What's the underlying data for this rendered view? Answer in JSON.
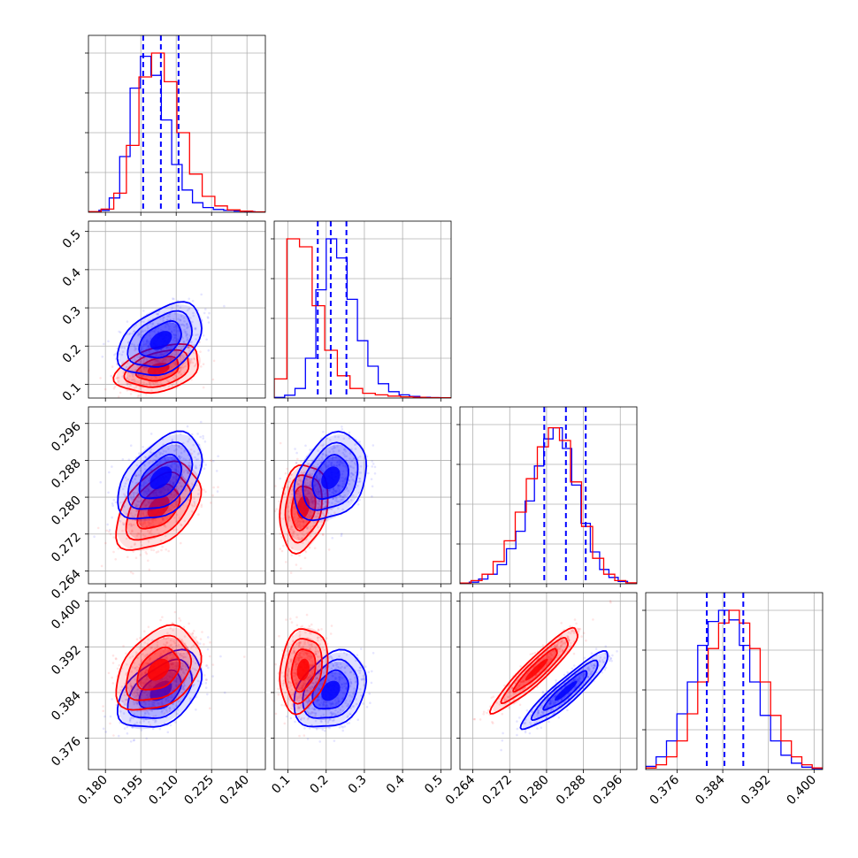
{
  "chart_data": {
    "type": "corner",
    "parameters": [
      {
        "ticks": [
          "0.180",
          "0.195",
          "0.210",
          "0.225",
          "0.240"
        ],
        "range": [
          0.1728,
          0.2478
        ]
      },
      {
        "ticks": [
          "0.1",
          "0.2",
          "0.3",
          "0.4",
          "0.5"
        ],
        "range": [
          0.064,
          0.527
        ]
      },
      {
        "ticks": [
          "0.264",
          "0.272",
          "0.280",
          "0.288",
          "0.296"
        ],
        "range": [
          0.2612,
          0.2996
        ]
      },
      {
        "ticks": [
          "0.376",
          "0.384",
          "0.392",
          "0.400"
        ],
        "range": [
          0.3705,
          0.4015
        ]
      }
    ],
    "grid": true,
    "series": [
      {
        "color": "#0000ff",
        "quantiles": [
          [
            0.196,
            0.2035,
            0.211
          ],
          [
            0.178,
            0.212,
            0.253
          ],
          [
            0.2795,
            0.2842,
            0.2885
          ],
          [
            0.3812,
            0.3843,
            0.3876
          ]
        ],
        "hist": [
          [
            0.003,
            0.012,
            0.09,
            0.35,
            0.78,
            0.98,
            0.86,
            0.58,
            0.3,
            0.14,
            0.06,
            0.03,
            0.018,
            0.012,
            0.008,
            0.004,
            0.002
          ],
          [
            0.004,
            0.018,
            0.06,
            0.25,
            0.68,
            1.0,
            0.88,
            0.62,
            0.36,
            0.2,
            0.09,
            0.04,
            0.02,
            0.01,
            0.005,
            0.003,
            0.002
          ],
          [
            0.004,
            0.01,
            0.03,
            0.06,
            0.12,
            0.22,
            0.33,
            0.52,
            0.74,
            0.91,
            0.98,
            0.85,
            0.62,
            0.38,
            0.2,
            0.09,
            0.04,
            0.015,
            0.005
          ],
          [
            0.02,
            0.08,
            0.18,
            0.35,
            0.55,
            0.78,
            0.93,
            1.0,
            0.94,
            0.78,
            0.55,
            0.34,
            0.18,
            0.09,
            0.04,
            0.015,
            0.005
          ]
        ],
        "pairs": {
          "1-0": {
            "mean": [
              0.2035,
              0.215
            ],
            "sd": [
              0.0085,
              0.045
            ],
            "rho": 0.4
          },
          "2-0": {
            "mean": [
              0.2035,
              0.2842
            ],
            "sd": [
              0.0085,
              0.0045
            ],
            "rho": 0.45
          },
          "2-1": {
            "mean": [
              0.212,
              0.2842
            ],
            "sd": [
              0.045,
              0.0045
            ],
            "rho": 0.3
          },
          "3-0": {
            "mean": [
              0.2035,
              0.3843
            ],
            "sd": [
              0.0085,
              0.0032
            ],
            "rho": 0.45
          },
          "3-1": {
            "mean": [
              0.212,
              0.3843
            ],
            "sd": [
              0.045,
              0.0032
            ],
            "rho": 0.3
          },
          "3-2": {
            "mean": [
              0.2842,
              0.3843
            ],
            "sd": [
              0.0045,
              0.0032
            ],
            "rho": 0.92
          }
        }
      },
      {
        "color": "#ff0000",
        "hist": [
          [
            0.004,
            0.02,
            0.12,
            0.42,
            0.85,
            1.0,
            0.82,
            0.5,
            0.24,
            0.1,
            0.04,
            0.015,
            0.007,
            0.003
          ],
          [
            0.12,
            1.0,
            0.95,
            0.58,
            0.3,
            0.14,
            0.06,
            0.03,
            0.02,
            0.012,
            0.008,
            0.005,
            0.003,
            0.002
          ],
          [
            0.005,
            0.02,
            0.06,
            0.14,
            0.27,
            0.45,
            0.66,
            0.86,
            0.98,
            0.9,
            0.64,
            0.36,
            0.16,
            0.06,
            0.02,
            0.006
          ],
          [
            0.01,
            0.03,
            0.08,
            0.18,
            0.35,
            0.55,
            0.76,
            0.92,
            1.0,
            0.92,
            0.76,
            0.55,
            0.34,
            0.18,
            0.08,
            0.03,
            0.01
          ]
        ],
        "pairs": {
          "1-0": {
            "mean": [
              0.2025,
              0.14
            ],
            "sd": [
              0.0085,
              0.03
            ],
            "rho": 0.35
          },
          "2-0": {
            "mean": [
              0.2025,
              0.2778
            ],
            "sd": [
              0.0085,
              0.0045
            ],
            "rho": 0.45
          },
          "2-1": {
            "mean": [
              0.14,
              0.2778
            ],
            "sd": [
              0.03,
              0.0045
            ],
            "rho": 0.2
          },
          "3-0": {
            "mean": [
              0.2025,
              0.388
            ],
            "sd": [
              0.0085,
              0.0035
            ],
            "rho": 0.35
          },
          "3-1": {
            "mean": [
              0.14,
              0.388
            ],
            "sd": [
              0.03,
              0.0035
            ],
            "rho": 0.2
          },
          "3-2": {
            "mean": [
              0.2778,
              0.388
            ],
            "sd": [
              0.0045,
              0.0035
            ],
            "rho": 0.93
          }
        }
      }
    ]
  }
}
